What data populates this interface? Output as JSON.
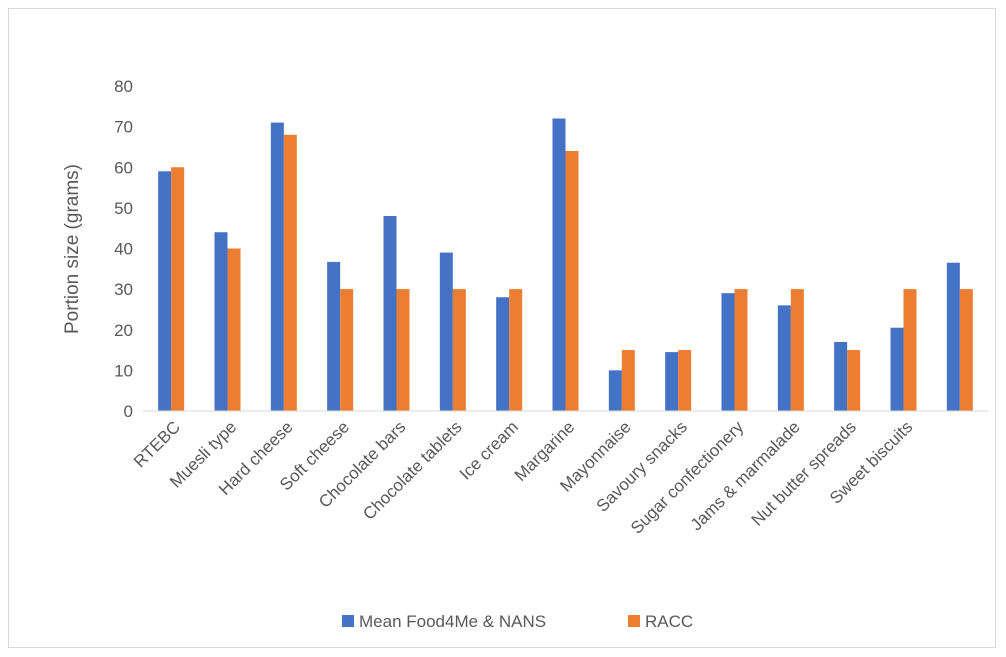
{
  "chart_data": {
    "type": "bar",
    "title": "",
    "xlabel": "",
    "ylabel": "Portion size (grams)",
    "ylim": [
      0,
      80
    ],
    "yticks": [
      0,
      10,
      20,
      30,
      40,
      50,
      60,
      70,
      80
    ],
    "grid": false,
    "legend_position": "bottom",
    "categories": [
      "RTEBC",
      "Muesli type",
      "Hard cheese",
      "Soft cheese",
      "Chocolate bars",
      "Chocolate tablets",
      "Ice cream",
      "Margarine",
      "Mayonnaise",
      "Savoury snacks",
      "Sugar confectionery",
      "Jams & marmalade",
      "Nut butter spreads",
      "Sweet biscuits",
      ""
    ],
    "series": [
      {
        "name": "Mean Food4Me & NANS",
        "color": "#4472c4",
        "values": [
          59,
          44,
          71,
          36.7,
          48,
          39,
          28,
          72,
          10,
          14.5,
          29,
          26,
          17,
          20.5,
          36.5
        ]
      },
      {
        "name": "RACC",
        "color": "#ed7d31",
        "values": [
          60,
          40,
          68,
          30,
          30,
          30,
          30,
          64,
          15,
          15,
          30,
          30,
          15,
          30,
          30
        ]
      }
    ]
  }
}
